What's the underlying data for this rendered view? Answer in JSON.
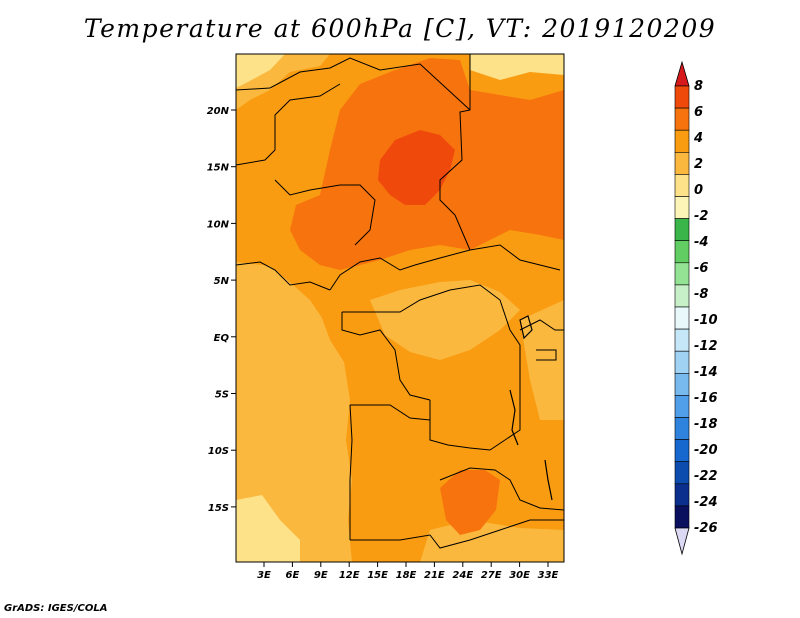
{
  "title": "Temperature at 600hPa [C], VT: 2019120209",
  "footer": "GrADS: IGES/COLA",
  "map": {
    "lon_ticks": [
      "3E",
      "6E",
      "9E",
      "12E",
      "15E",
      "18E",
      "21E",
      "24E",
      "27E",
      "30E",
      "33E"
    ],
    "lat_ticks": [
      "20N",
      "15N",
      "10N",
      "5N",
      "EQ",
      "5S",
      "10S",
      "15S"
    ]
  },
  "colorbar": {
    "levels": [
      "8",
      "6",
      "4",
      "2",
      "0",
      "-2",
      "-4",
      "-6",
      "-8",
      "-10",
      "-12",
      "-14",
      "-16",
      "-18",
      "-20",
      "-22",
      "-24",
      "-26"
    ],
    "colors": [
      "#d7191c",
      "#ef4a0c",
      "#f7730e",
      "#f99c12",
      "#fbb83e",
      "#fde28a",
      "#fdf5b8",
      "#39b54a",
      "#62cd62",
      "#94e294",
      "#c8f0c8",
      "#e8f8fb",
      "#c5e7f7",
      "#9fd2f3",
      "#78b9ee",
      "#519fe9",
      "#2f83dd",
      "#1668cf",
      "#0c4cae",
      "#0b2f8d",
      "#0a0f5e",
      "#dcd9f5"
    ]
  }
}
